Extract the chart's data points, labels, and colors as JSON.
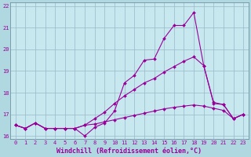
{
  "xlabel": "Windchill (Refroidissement éolien,°C)",
  "background_color": "#b0d8e0",
  "plot_bg_color": "#c8e8f0",
  "line_color": "#990099",
  "grid_color": "#9ab8c8",
  "spine_color": "#7090a0",
  "xlim": [
    -0.5,
    23.5
  ],
  "ylim": [
    15.85,
    22.15
  ],
  "yticks": [
    16,
    17,
    18,
    19,
    20,
    21,
    22
  ],
  "xticks": [
    0,
    1,
    2,
    3,
    4,
    5,
    6,
    7,
    8,
    9,
    10,
    11,
    12,
    13,
    14,
    15,
    16,
    17,
    18,
    19,
    20,
    21,
    22,
    23
  ],
  "line1_x": [
    0,
    1,
    2,
    3,
    4,
    5,
    6,
    7,
    8,
    9,
    10,
    11,
    12,
    13,
    14,
    15,
    16,
    17,
    18,
    19,
    20,
    21,
    22,
    23
  ],
  "line1_y": [
    16.5,
    16.35,
    16.6,
    16.35,
    16.35,
    16.35,
    16.35,
    16.0,
    16.4,
    16.6,
    17.15,
    18.45,
    18.8,
    19.5,
    19.55,
    20.5,
    21.1,
    21.1,
    21.7,
    19.25,
    17.5,
    17.45,
    16.8,
    17.0
  ],
  "line2_x": [
    0,
    1,
    2,
    3,
    4,
    5,
    6,
    7,
    8,
    9,
    10,
    11,
    12,
    13,
    14,
    15,
    16,
    17,
    18,
    19,
    20,
    21,
    22,
    23
  ],
  "line2_y": [
    16.5,
    16.35,
    16.6,
    16.35,
    16.35,
    16.35,
    16.35,
    16.5,
    16.8,
    17.1,
    17.5,
    17.85,
    18.15,
    18.45,
    18.65,
    18.95,
    19.2,
    19.45,
    19.65,
    19.25,
    17.55,
    17.45,
    16.8,
    17.0
  ],
  "line3_x": [
    0,
    1,
    2,
    3,
    4,
    5,
    6,
    7,
    8,
    9,
    10,
    11,
    12,
    13,
    14,
    15,
    16,
    17,
    18,
    19,
    20,
    21,
    22,
    23
  ],
  "line3_y": [
    16.5,
    16.35,
    16.6,
    16.35,
    16.35,
    16.35,
    16.35,
    16.5,
    16.55,
    16.65,
    16.75,
    16.85,
    16.95,
    17.05,
    17.15,
    17.25,
    17.32,
    17.38,
    17.43,
    17.38,
    17.28,
    17.18,
    16.8,
    17.0
  ],
  "marker": "D",
  "markersize": 2.0,
  "linewidth": 0.8,
  "tick_fontsize": 5.0,
  "xlabel_fontsize": 6.0
}
